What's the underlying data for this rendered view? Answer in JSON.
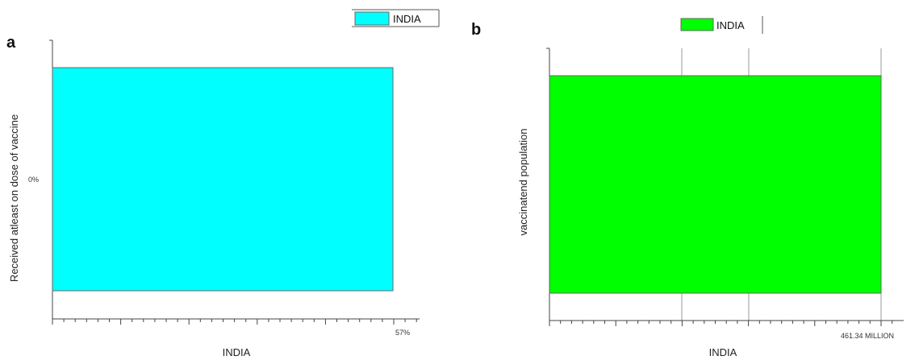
{
  "chart_data": [
    {
      "panel": "a",
      "type": "bar",
      "orientation": "horizontal",
      "categories": [
        "INDIA"
      ],
      "series": [
        {
          "name": "INDIA",
          "values": [
            57
          ],
          "color": "#00FFFF"
        }
      ],
      "unit": "%",
      "xlabel": "INDIA",
      "ylabel": "Received atleast on dose of vaccine",
      "category_tick_label": "0%",
      "value_label": "57%",
      "xlim": [
        0,
        57
      ],
      "grid": false,
      "legend": "top-right"
    },
    {
      "panel": "b",
      "type": "bar",
      "orientation": "horizontal",
      "categories": [
        "INDIA"
      ],
      "series": [
        {
          "name": "INDIA",
          "values": [
            461.34
          ],
          "color": "#00FF00"
        }
      ],
      "unit": "MILLION",
      "xlabel": "INDIA",
      "ylabel": "vaccinatend population",
      "value_label": "461.34 MILLION",
      "xlim": [
        0,
        461.34
      ],
      "grid": true,
      "legend": "top-center"
    }
  ]
}
